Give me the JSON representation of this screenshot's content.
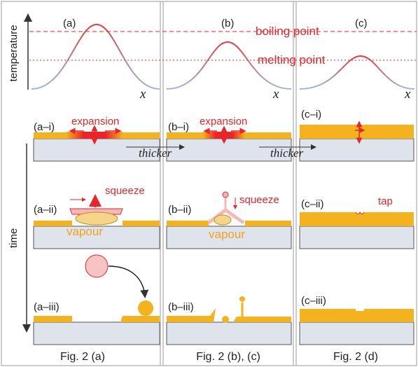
{
  "axes": {
    "y_label": "temperature",
    "x_labels": [
      "x",
      "x",
      "x"
    ],
    "time_label": "time",
    "boiling_point": "boiling point",
    "melting_point": "melting point"
  },
  "columns": [
    {
      "label": "(a)",
      "caption": "Fig. 2 (a)",
      "steps": [
        {
          "label": "(a–i)",
          "note": "expansion"
        },
        {
          "label": "(a–ii)",
          "note": "squeeze",
          "medium": "vapour"
        },
        {
          "label": "(a–iii)"
        }
      ]
    },
    {
      "label": "(b)",
      "caption": "Fig. 2 (b), (c)",
      "steps": [
        {
          "label": "(b–i)",
          "note": "expansion"
        },
        {
          "label": "(b–ii)",
          "note": "squeeze",
          "medium": "vapour"
        },
        {
          "label": "(b–iii)"
        }
      ]
    },
    {
      "label": "(c)",
      "caption": "Fig. 2 (d)",
      "steps": [
        {
          "label": "(c–i)"
        },
        {
          "label": "(c–ii)",
          "note": "tap"
        },
        {
          "label": "(c–iii)"
        }
      ]
    }
  ],
  "transitions": [
    "thicker",
    "thicker"
  ]
}
